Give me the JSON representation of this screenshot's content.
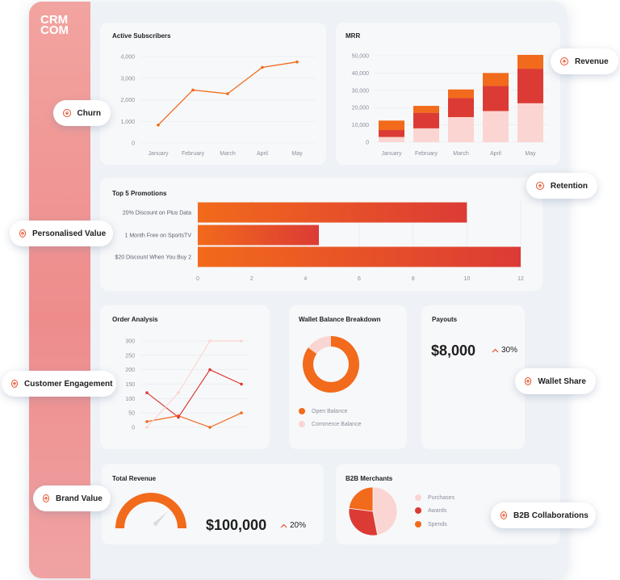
{
  "brand": {
    "logo_line1": "CRM",
    "logo_line2": "COM"
  },
  "pills": {
    "churn": "Churn",
    "revenue": "Revenue",
    "retention": "Retention",
    "personalised_value": "Personalised Value",
    "customer_engagement": "Customer Engagement",
    "wallet_share": "Wallet Share",
    "brand_value": "Brand Value",
    "b2b_collaborations": "B2B Collaborations"
  },
  "cards": {
    "active_subscribers": "Active Subscribers",
    "mrr": "MRR",
    "top_promotions": "Top 5 Promotions",
    "order_analysis": "Order Analysis",
    "wallet_balance": "Wallet Balance Breakdown",
    "payouts": "Payouts",
    "total_revenue": "Total Revenue",
    "b2b_merchants": "B2B Merchants"
  },
  "payouts": {
    "value": "$8,000",
    "change": "30%"
  },
  "total_revenue": {
    "value": "$100,000",
    "change": "20%",
    "gauge_level": 0.75
  },
  "colors": {
    "accent": "#f26a1b",
    "red": "#dc3b35",
    "pink": "#fbd5d1",
    "sidebar": "#ee8c8c"
  },
  "chart_data": [
    {
      "type": "line",
      "title": "Active Subscribers",
      "categories": [
        "January",
        "February",
        "March",
        "April",
        "May"
      ],
      "series": [
        {
          "values": [
            830,
            2450,
            2280,
            3500,
            3750
          ]
        }
      ],
      "yticks": [
        "0",
        "1,000",
        "2,000",
        "3,000",
        "4,000"
      ],
      "ylim": [
        0,
        4000
      ]
    },
    {
      "type": "bar",
      "stacked": true,
      "title": "MRR",
      "categories": [
        "January",
        "February",
        "March",
        "April",
        "May"
      ],
      "series": [
        {
          "color": "#fbd5d1",
          "values": [
            3000,
            8000,
            14500,
            18000,
            22500
          ]
        },
        {
          "color": "#dc3b35",
          "values": [
            4000,
            9000,
            11000,
            14500,
            20000
          ]
        },
        {
          "color": "#f26a1b",
          "values": [
            5500,
            4000,
            5000,
            7500,
            8000
          ]
        }
      ],
      "yticks": [
        "0",
        "10,000",
        "20,000",
        "30,000",
        "40,000",
        "50,000"
      ],
      "ylim": [
        0,
        50000
      ]
    },
    {
      "type": "bar",
      "orientation": "horizontal",
      "title": "Top 5 Promotions",
      "categories": [
        "20% Discount on Plus Data",
        "1 Month Free on SportsTV",
        "$20 Discount When You Buy 2"
      ],
      "values": [
        10,
        4.5,
        12
      ],
      "xticks": [
        "0",
        "2",
        "4",
        "6",
        "8",
        "10",
        "12"
      ],
      "xlim": [
        0,
        12
      ]
    },
    {
      "type": "line",
      "title": "Order Analysis",
      "series": [
        {
          "color": "#f26a1b",
          "values": [
            20,
            40,
            0,
            50
          ]
        },
        {
          "color": "#dc3b35",
          "values": [
            120,
            35,
            200,
            150
          ]
        },
        {
          "color": "#fbd5d1",
          "values": [
            0,
            120,
            300,
            300
          ]
        }
      ],
      "yticks": [
        "0",
        "50",
        "100",
        "150",
        "200",
        "250",
        "300"
      ],
      "ylim": [
        0,
        300
      ]
    },
    {
      "type": "pie",
      "donut": true,
      "title": "Wallet Balance Breakdown",
      "labels": [
        "Open Balance",
        "Commerce Balance"
      ],
      "values": [
        85,
        15
      ],
      "colors": [
        "#f26a1b",
        "#fbd5d1"
      ]
    },
    {
      "type": "pie",
      "title": "B2B Merchants",
      "labels": [
        "Purchases",
        "Awards",
        "Spends"
      ],
      "values": [
        47,
        30,
        23
      ],
      "colors": [
        "#fbd5d1",
        "#dc3b35",
        "#f26a1b"
      ]
    }
  ]
}
